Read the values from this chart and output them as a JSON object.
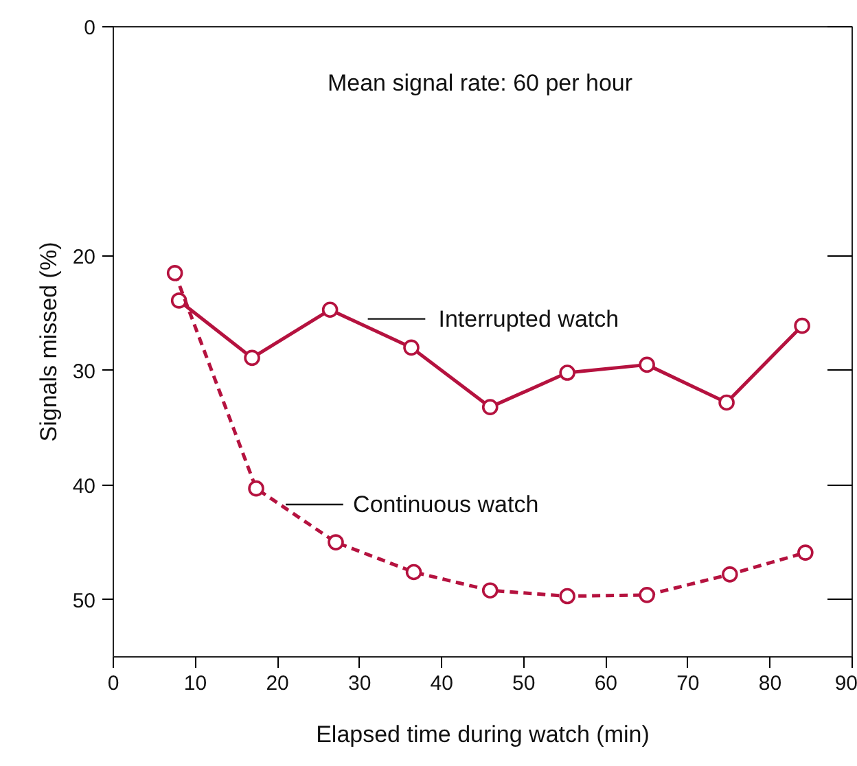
{
  "chart_data": {
    "type": "line",
    "xlabel": "Elapsed time during watch (min)",
    "ylabel": "Signals missed (%)",
    "annotations": [
      "Mean signal rate: 60 per hour"
    ],
    "xlim": [
      0,
      90
    ],
    "xticks": [
      0,
      10,
      20,
      30,
      40,
      50,
      60,
      70,
      80,
      90
    ],
    "ylim": [
      55,
      0
    ],
    "yticks": [
      0,
      20,
      30,
      40,
      50
    ],
    "grid": false,
    "marker": "circle",
    "series": [
      {
        "name": "Interrupted watch",
        "color": "#b5123f",
        "line_style": "solid",
        "x": [
          8.0,
          16.9,
          26.4,
          36.3,
          45.9,
          55.3,
          65.0,
          74.7,
          83.9
        ],
        "values": [
          23.9,
          28.9,
          24.7,
          28.0,
          33.2,
          30.2,
          29.5,
          32.8,
          26.1
        ]
      },
      {
        "name": "Continuous watch",
        "color": "#b5123f",
        "line_style": "dashed",
        "x": [
          7.5,
          17.4,
          27.1,
          36.6,
          45.9,
          55.3,
          65.0,
          75.1,
          84.3
        ],
        "values": [
          21.5,
          40.3,
          45.0,
          47.6,
          49.2,
          49.7,
          49.6,
          47.8,
          45.9
        ]
      }
    ]
  }
}
